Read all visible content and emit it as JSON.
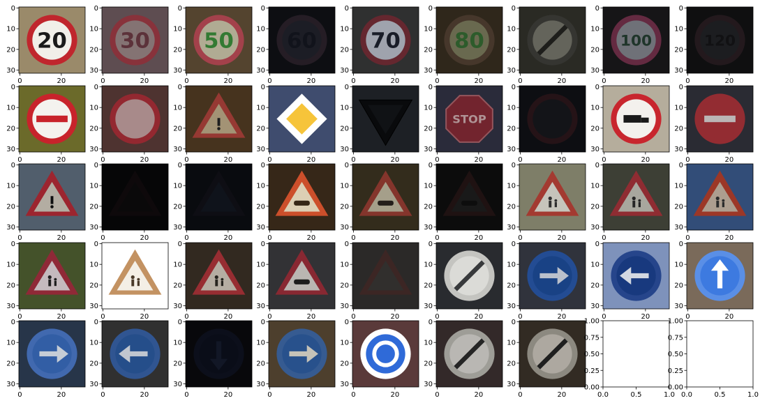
{
  "figure": {
    "rows": 5,
    "cols": 9,
    "image_axis": {
      "xticks": [
        "0",
        "20"
      ],
      "yticks": [
        "0",
        "10",
        "20",
        "30"
      ]
    },
    "empty_axis": {
      "xticks": [
        "0.0",
        "0.5",
        "1.0"
      ],
      "yticks": [
        "0.00",
        "0.25",
        "0.50",
        "0.75",
        "1.00"
      ]
    }
  },
  "chart_data": {
    "type": "image_grid",
    "image_size": [
      32,
      32
    ],
    "xlim": [
      -0.5,
      31.5
    ],
    "ylim": [
      31.5,
      -0.5
    ],
    "panels": [
      {
        "kind": "sign",
        "shape": "circle-ring",
        "face": "#f1efe9",
        "rim": "#c0262d",
        "glyph": "20",
        "glyph_color": "#1a1a1a",
        "bg": "#9a8a6a",
        "brightness": 1.0
      },
      {
        "kind": "sign",
        "shape": "circle-ring",
        "face": "#9a8686",
        "rim": "#9e3a45",
        "glyph": "30",
        "glyph_color": "#6b3a44",
        "bg": "#6e5a5e",
        "brightness": 0.75
      },
      {
        "kind": "sign",
        "shape": "circle-ring",
        "face": "#c6c0a6",
        "rim": "#b84a55",
        "glyph": "50",
        "glyph_color": "#3a8a3a",
        "bg": "#5f4d35",
        "brightness": 0.8
      },
      {
        "kind": "sign",
        "shape": "circle-ring",
        "face": "#2c2e3a",
        "rim": "#3a2e3a",
        "glyph": "60",
        "glyph_color": "#1b1e2a",
        "bg": "#15161c",
        "brightness": 0.35
      },
      {
        "kind": "sign",
        "shape": "circle-ring",
        "face": "#bfc4cf",
        "rim": "#7a2f39",
        "glyph": "70",
        "glyph_color": "#1f2330",
        "bg": "#393a3a",
        "brightness": 0.7
      },
      {
        "kind": "sign",
        "shape": "circle-ring",
        "face": "#8c8c6a",
        "rim": "#5e4a3a",
        "glyph": "80",
        "glyph_color": "#3c7a3a",
        "bg": "#3f3525",
        "brightness": 0.55
      },
      {
        "kind": "sign",
        "shape": "circle-slash",
        "face": "#8a8a7e",
        "rim": "#4a4a44",
        "glyph": "",
        "glyph_color": "#2a2a26",
        "bg": "#3a3a32",
        "brightness": 0.5
      },
      {
        "kind": "sign",
        "shape": "circle-ring",
        "face": "#9a9ca6",
        "rim": "#8a3a5a",
        "glyph": "100",
        "glyph_color": "#2c4a3a",
        "bg": "#1f1d20",
        "brightness": 0.5
      },
      {
        "kind": "sign",
        "shape": "circle-ring",
        "face": "#2e3034",
        "rim": "#3a2a30",
        "glyph": "120",
        "glyph_color": "#1c1d20",
        "bg": "#19191b",
        "brightness": 0.3
      },
      {
        "kind": "sign",
        "shape": "circle-bar",
        "face": "#f4f2ee",
        "rim": "#c8232b",
        "glyph": "",
        "glyph_color": "#c8232b",
        "bg": "#6b6a2a",
        "brightness": 1.0
      },
      {
        "kind": "sign",
        "shape": "circle-ring",
        "face": "#c9a6a6",
        "rim": "#b0303a",
        "glyph": "",
        "glyph_color": "#4a3030",
        "bg": "#5e3e3a",
        "brightness": 0.7
      },
      {
        "kind": "sign",
        "shape": "triangle",
        "face": "#b8a684",
        "rim": "#a9413a",
        "glyph": "!",
        "glyph_color": "#222",
        "bg": "#4f3a22",
        "brightness": 0.8
      },
      {
        "kind": "sign",
        "shape": "diamond",
        "face": "#f6c43a",
        "rim": "#ffffff",
        "glyph": "",
        "glyph_color": "#f6c43a",
        "bg": "#3f4c6e",
        "brightness": 1.0
      },
      {
        "kind": "sign",
        "shape": "triangle-down",
        "face": "#1a1c22",
        "rim": "#0f1014",
        "glyph": "",
        "glyph_color": "#111",
        "bg": "#2e323a",
        "brightness": 0.35
      },
      {
        "kind": "sign",
        "shape": "octagon",
        "face": "#8e2d3a",
        "rim": "#b86a72",
        "glyph": "STOP",
        "glyph_color": "#d9b6b9",
        "bg": "#343648",
        "brightness": 0.65
      },
      {
        "kind": "sign",
        "shape": "circle-ring",
        "face": "#1e2026",
        "rim": "#3a1f24",
        "glyph": "",
        "glyph_color": "#111",
        "bg": "#15171d",
        "brightness": 0.35
      },
      {
        "kind": "sign",
        "shape": "circle-ring",
        "face": "#f3f1ed",
        "rim": "#c8262e",
        "glyph": "truck",
        "glyph_color": "#1a1a1a",
        "bg": "#b5ad9c",
        "brightness": 1.0
      },
      {
        "kind": "sign",
        "shape": "circle-bar",
        "face": "#b7373f",
        "rim": "#b7373f",
        "glyph": "",
        "glyph_color": "#e8e0e0",
        "bg": "#343640",
        "brightness": 0.65
      },
      {
        "kind": "sign",
        "shape": "triangle",
        "face": "#c9c3b6",
        "rim": "#b02a35",
        "glyph": "!",
        "glyph_color": "#111",
        "bg": "#5b6a7a",
        "brightness": 0.8
      },
      {
        "kind": "sign",
        "shape": "triangle",
        "face": "#141214",
        "rim": "#1b1216",
        "glyph": "",
        "glyph_color": "#0c0c0c",
        "bg": "#0c0c0e",
        "brightness": 0.15
      },
      {
        "kind": "sign",
        "shape": "triangle",
        "face": "#1c2230",
        "rim": "#1a1a24",
        "glyph": "",
        "glyph_color": "#121620",
        "bg": "#11141c",
        "brightness": 0.2
      },
      {
        "kind": "sign",
        "shape": "triangle",
        "face": "#e9dcbf",
        "rim": "#d8542e",
        "glyph": "car",
        "glyph_color": "#3a2a18",
        "bg": "#3a2a1a",
        "brightness": 0.9
      },
      {
        "kind": "sign",
        "shape": "triangle",
        "face": "#c6bfa6",
        "rim": "#9e4035",
        "glyph": "car",
        "glyph_color": "#2a2520",
        "bg": "#3e3522",
        "brightness": 0.7
      },
      {
        "kind": "sign",
        "shape": "triangle",
        "face": "#2a2a2a",
        "rim": "#331e1e",
        "glyph": "car",
        "glyph_color": "#161616",
        "bg": "#141414",
        "brightness": 0.3
      },
      {
        "kind": "sign",
        "shape": "triangle",
        "face": "#d8d6cc",
        "rim": "#b24036",
        "glyph": "person",
        "glyph_color": "#333",
        "bg": "#8a8a72",
        "brightness": 0.85
      },
      {
        "kind": "sign",
        "shape": "triangle",
        "face": "#c3c2b8",
        "rim": "#a6333a",
        "glyph": "person",
        "glyph_color": "#2b2b2b",
        "bg": "#474a3e",
        "brightness": 0.75
      },
      {
        "kind": "sign",
        "shape": "triangle",
        "face": "#c9b8a6",
        "rim": "#b5402e",
        "glyph": "person",
        "glyph_color": "#333",
        "bg": "#3a5a8c",
        "brightness": 0.75
      },
      {
        "kind": "sign",
        "shape": "triangle",
        "face": "#d6cbd0",
        "rim": "#9c2d3d",
        "glyph": "person",
        "glyph_color": "#222",
        "bg": "#4b5a2e",
        "brightness": 0.85
      },
      {
        "kind": "sign",
        "shape": "triangle",
        "face": "#f4efe6",
        "rim": "#c39262",
        "glyph": "person",
        "glyph_color": "#4a3a2a",
        "bg": "#ffffff",
        "brightness": 1.0
      },
      {
        "kind": "sign",
        "shape": "triangle",
        "face": "#d2c9bc",
        "rim": "#b0353a",
        "glyph": "person",
        "glyph_color": "#2d2a25",
        "bg": "#3a3026",
        "brightness": 0.75
      },
      {
        "kind": "sign",
        "shape": "triangle",
        "face": "#d8d3cf",
        "rim": "#9e2f3a",
        "glyph": "car",
        "glyph_color": "#222",
        "bg": "#3a3b3e",
        "brightness": 0.75
      },
      {
        "kind": "sign",
        "shape": "triangle",
        "face": "#4a4644",
        "rim": "#5a3a36",
        "glyph": "",
        "glyph_color": "#333",
        "bg": "#403e3c",
        "brightness": 0.4
      },
      {
        "kind": "sign",
        "shape": "circle-slash",
        "face": "#e8e8e4",
        "rim": "#d0d0cc",
        "glyph": "",
        "glyph_color": "#3c3e40",
        "bg": "#2c2e32",
        "brightness": 0.9
      },
      {
        "kind": "sign",
        "shape": "circle-arrow-right",
        "face": "#1f4fa0",
        "rim": "#2a5cb0",
        "glyph": "",
        "glyph_color": "#dfe6f4",
        "bg": "#3a3e48",
        "brightness": 0.7
      },
      {
        "kind": "sign",
        "shape": "circle-arrow-left",
        "face": "#1b3f8a",
        "rim": "#2a4c98",
        "glyph": "",
        "glyph_color": "#e6ecf6",
        "bg": "#8aa0cc",
        "brightness": 0.85
      },
      {
        "kind": "sign",
        "shape": "circle-arrow-up",
        "face": "#3d7ae0",
        "rim": "#5a8fe6",
        "glyph": "",
        "glyph_color": "#ffffff",
        "bg": "#7a6a5a",
        "brightness": 1.0
      },
      {
        "kind": "sign",
        "shape": "circle-arrow-right",
        "face": "#3b6ec0",
        "rim": "#4c7acb",
        "glyph": "",
        "glyph_color": "#e6eef8",
        "bg": "#2e3e55",
        "brightness": 0.75
      },
      {
        "kind": "sign",
        "shape": "circle-arrow-left",
        "face": "#2d5ea6",
        "rim": "#3a66ae",
        "glyph": "",
        "glyph_color": "#e6eef8",
        "bg": "#3a3a3a",
        "brightness": 0.7
      },
      {
        "kind": "sign",
        "shape": "circle-arrow-down",
        "face": "#12172a",
        "rim": "#161b2e",
        "glyph": "",
        "glyph_color": "#1f2842",
        "bg": "#0e0f14",
        "brightness": 0.25
      },
      {
        "kind": "sign",
        "shape": "circle-arrow-right",
        "face": "#2f5ea3",
        "rim": "#3f6aa8",
        "glyph": "",
        "glyph_color": "#e6e2d6",
        "bg": "#5a4a35",
        "brightness": 0.75
      },
      {
        "kind": "sign",
        "shape": "circle-roundabout",
        "face": "#2f6ad8",
        "rim": "#ffffff",
        "glyph": "",
        "glyph_color": "#ffffff",
        "bg": "#5a3a3a",
        "brightness": 1.0
      },
      {
        "kind": "sign",
        "shape": "circle-slash",
        "face": "#d7d5d0",
        "rim": "#b8b6b0",
        "glyph": "",
        "glyph_color": "#2c2c2c",
        "bg": "#3c3030",
        "brightness": 0.75
      },
      {
        "kind": "sign",
        "shape": "circle-slash",
        "face": "#cfcac0",
        "rim": "#a8a49a",
        "glyph": "",
        "glyph_color": "#262626",
        "bg": "#3c342a",
        "brightness": 0.7
      },
      {
        "kind": "empty"
      },
      {
        "kind": "empty"
      }
    ]
  }
}
